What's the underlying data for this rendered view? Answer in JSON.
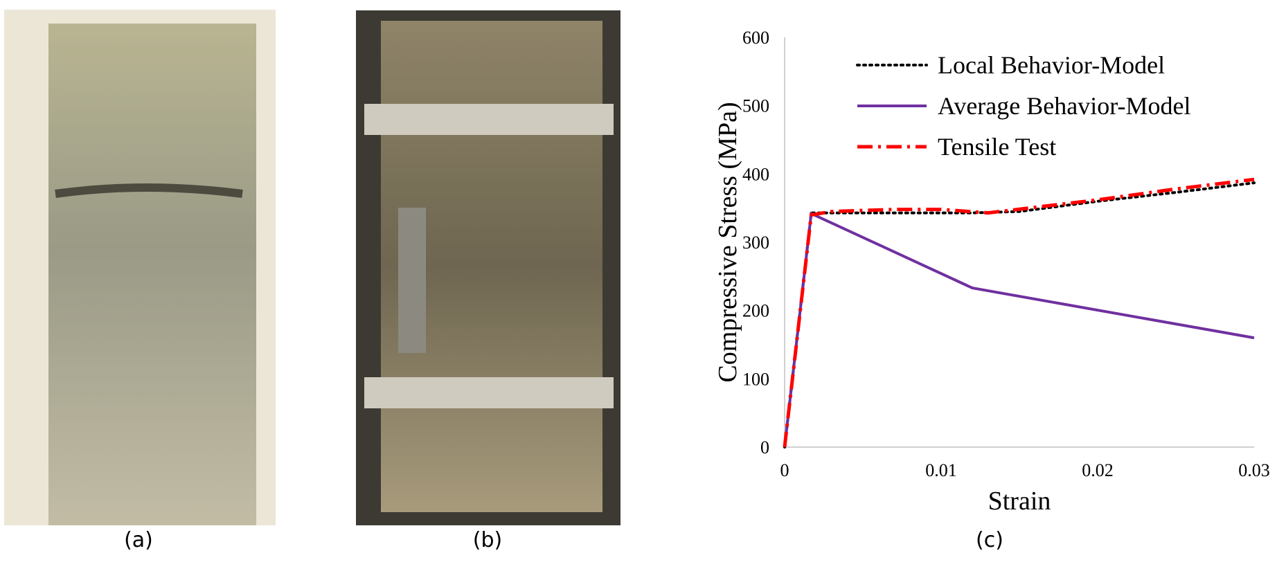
{
  "captions": [
    "(a)",
    "(b)",
    "(c)"
  ],
  "chart_data": {
    "type": "line",
    "xlabel": "Strain",
    "ylabel": "Compressive Stress (MPa)",
    "xlim": [
      0,
      0.03
    ],
    "ylim": [
      0,
      600
    ],
    "xticks": [
      0,
      0.01,
      0.02,
      0.03
    ],
    "yticks": [
      0,
      100,
      200,
      300,
      400,
      500,
      600
    ],
    "grid": false,
    "legend": "upper-left",
    "series": [
      {
        "name": "Local Behavior-Model",
        "color": "#000000",
        "style": "dotted",
        "x": [
          0,
          0.0017,
          0.005,
          0.012,
          0.015,
          0.02,
          0.025,
          0.03
        ],
        "values": [
          0,
          343,
          343,
          343,
          345,
          360,
          373,
          387
        ]
      },
      {
        "name": "Average Behavior-Model",
        "color": "#7030a0",
        "style": "solid",
        "x": [
          0,
          0.0017,
          0.012,
          0.03
        ],
        "values": [
          0,
          342,
          233,
          160
        ]
      },
      {
        "name": "Tensile Test",
        "color": "#ff0000",
        "style": "dashdot",
        "x": [
          0,
          0.0017,
          0.003,
          0.007,
          0.01,
          0.013,
          0.02,
          0.025,
          0.03
        ],
        "values": [
          0,
          340,
          345,
          348,
          348,
          343,
          362,
          378,
          392
        ]
      }
    ]
  }
}
